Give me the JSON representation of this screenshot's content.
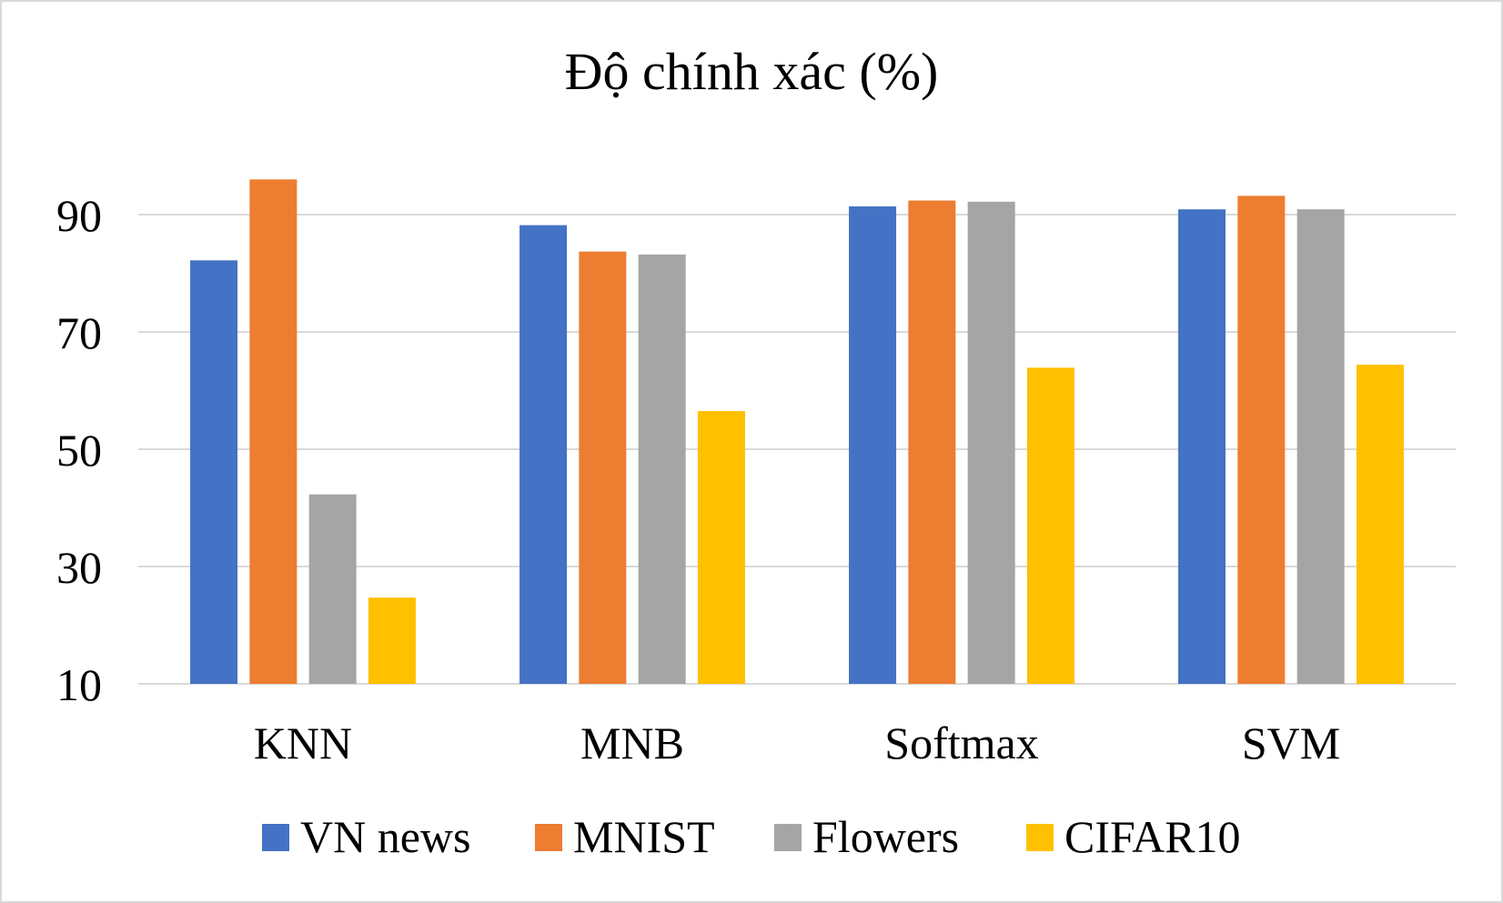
{
  "chart_data": {
    "type": "bar",
    "title": "Độ chính xác (%)",
    "xlabel": "",
    "ylabel": "",
    "categories": [
      "KNN",
      "MNB",
      "Softmax",
      "SVM"
    ],
    "yticks": [
      "10",
      "30",
      "50",
      "70",
      "90"
    ],
    "ylim": [
      10,
      100
    ],
    "grid": true,
    "legend_position": "bottom",
    "series": [
      {
        "name": "VN news",
        "color": "#4472C4",
        "values": [
          82.2,
          88.2,
          91.4,
          90.9
        ]
      },
      {
        "name": "MNIST",
        "color": "#ED7D31",
        "values": [
          96.0,
          83.7,
          92.4,
          93.2
        ]
      },
      {
        "name": "Flowers",
        "color": "#A5A5A5",
        "values": [
          42.3,
          83.2,
          92.2,
          90.9
        ]
      },
      {
        "name": "CIFAR10",
        "color": "#FFC000",
        "values": [
          24.7,
          56.5,
          63.9,
          64.4
        ]
      }
    ]
  }
}
